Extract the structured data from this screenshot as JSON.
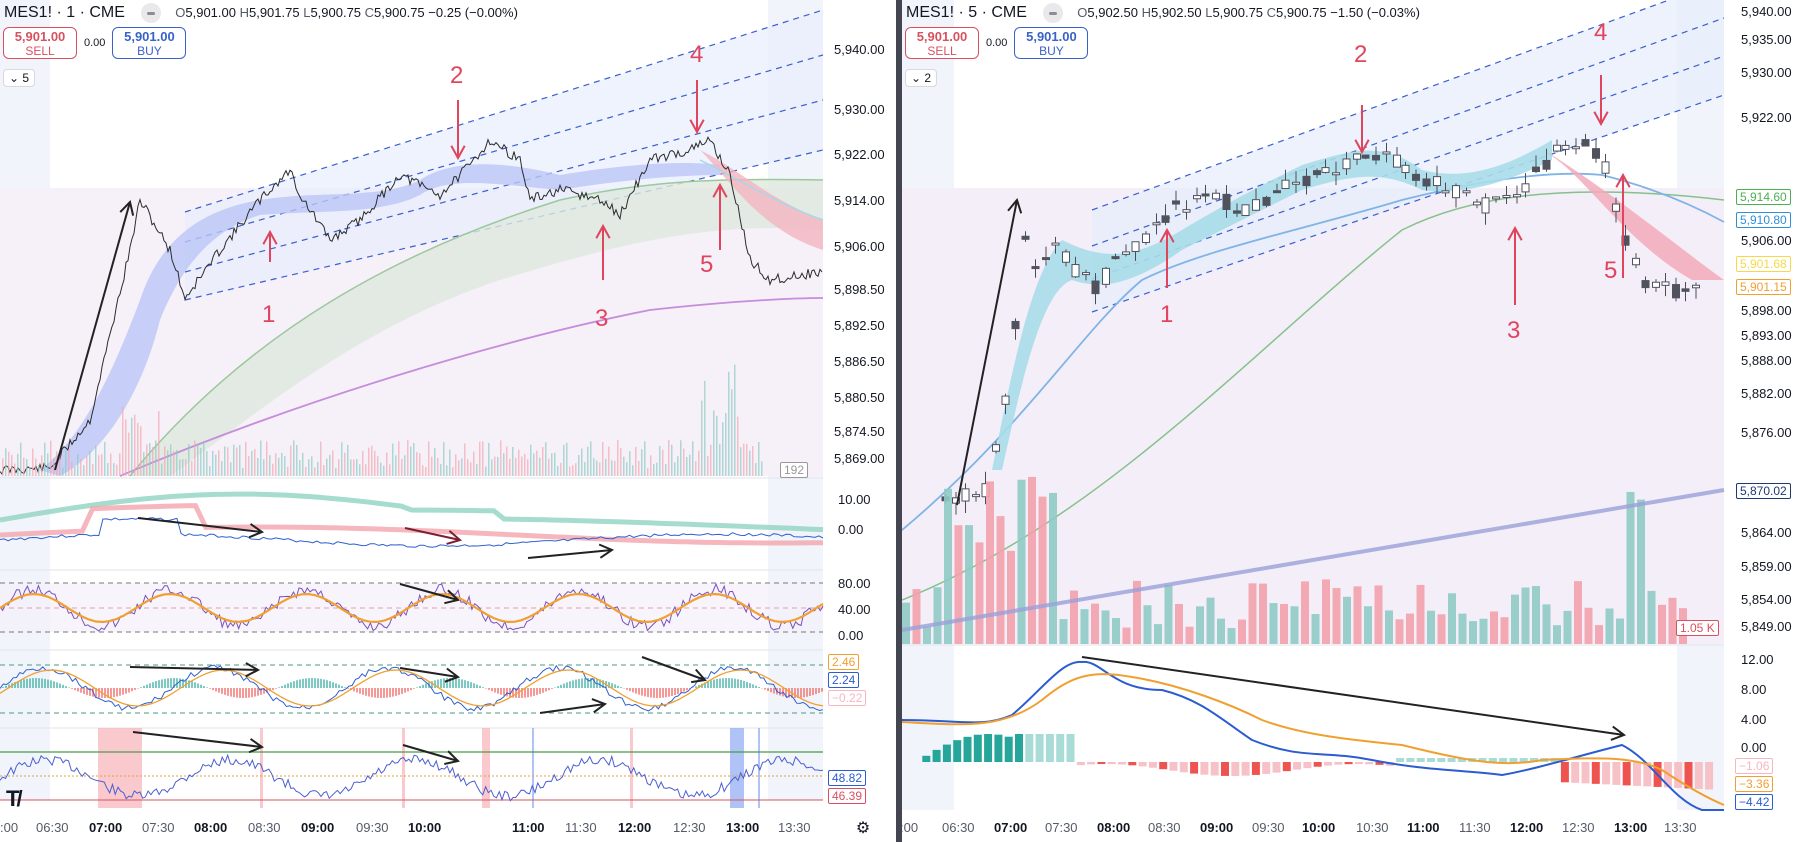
{
  "charts": [
    {
      "id": "left",
      "symbol": "MES1! · 1 · CME",
      "ohlc": {
        "o": "5,901.00",
        "h": "5,901.75",
        "l": "5,900.75",
        "c": "5,900.75",
        "change": "−0.25 (−0.00%)"
      },
      "sell": {
        "price": "5,901.00",
        "label": "SELL"
      },
      "buy": {
        "price": "5,901.00",
        "label": "BUY"
      },
      "spread": "0.00",
      "indicators_toggle": "5",
      "price_axis": [
        "5,940.00",
        "5,930.00",
        "5,922.00",
        "5,914.00",
        "5,906.00",
        "5,898.50",
        "5,892.50",
        "5,886.50",
        "5,880.50",
        "5,874.50",
        "5,869.00"
      ],
      "volume_tag": "192",
      "pane2_axis": [
        "10.00",
        "0.00"
      ],
      "pane3_axis": [
        "80.00",
        "40.00",
        "0.00"
      ],
      "pane4_tags": [
        "2.46",
        "2.24",
        "−0.22"
      ],
      "pane5_tags": [
        "48.82",
        "46.39"
      ],
      "time_axis": [
        {
          "t": ":00",
          "bold": false
        },
        {
          "t": "06:30",
          "bold": false
        },
        {
          "t": "07:00",
          "bold": true
        },
        {
          "t": "07:30",
          "bold": false
        },
        {
          "t": "08:00",
          "bold": true
        },
        {
          "t": "08:30",
          "bold": false
        },
        {
          "t": "09:00",
          "bold": true
        },
        {
          "t": "09:30",
          "bold": false
        },
        {
          "t": "10:00",
          "bold": true
        },
        {
          "t": "11:00",
          "bold": true
        },
        {
          "t": "11:30",
          "bold": false
        },
        {
          "t": "12:00",
          "bold": true
        },
        {
          "t": "12:30",
          "bold": false
        },
        {
          "t": "13:00",
          "bold": true
        },
        {
          "t": "13:30",
          "bold": false
        }
      ],
      "annotations": [
        "1",
        "2",
        "3",
        "4",
        "5"
      ]
    },
    {
      "id": "right",
      "symbol": "MES1! · 5 · CME",
      "ohlc": {
        "o": "5,902.50",
        "h": "5,902.50",
        "l": "5,900.75",
        "c": "5,900.75",
        "change": "−1.50 (−0.03%)"
      },
      "sell": {
        "price": "5,901.00",
        "label": "SELL"
      },
      "buy": {
        "price": "5,901.00",
        "label": "BUY"
      },
      "spread": "0.00",
      "indicators_toggle": "2",
      "price_axis": [
        "5,940.00",
        "5,935.00",
        "5,930.00",
        "5,922.00",
        "5,906.00",
        "5,898.00",
        "5,893.00",
        "5,888.00",
        "5,882.00",
        "5,876.00",
        "5,864.00",
        "5,859.00",
        "5,854.00",
        "5,849.00"
      ],
      "price_tags": [
        {
          "v": "5,914.60",
          "color": "#4caf50"
        },
        {
          "v": "5,910.80",
          "color": "#2f8fd8"
        },
        {
          "v": "5,901.68",
          "color": "#f5d94a"
        },
        {
          "v": "5,901.15",
          "color": "#f0a030"
        },
        {
          "v": "5,870.02",
          "color": "#1e3a70"
        }
      ],
      "volume_tag": "1.05 K",
      "macd_axis": [
        "12.00",
        "8.00",
        "4.00",
        "0.00"
      ],
      "macd_tags": [
        {
          "v": "−1.06",
          "color": "#f7b6c0"
        },
        {
          "v": "−3.36",
          "color": "#f0a030"
        },
        {
          "v": "−4.42",
          "color": "#2b5cd0"
        }
      ],
      "time_axis": [
        {
          "t": ":00",
          "bold": false
        },
        {
          "t": "06:30",
          "bold": false
        },
        {
          "t": "07:00",
          "bold": true
        },
        {
          "t": "07:30",
          "bold": false
        },
        {
          "t": "08:00",
          "bold": true
        },
        {
          "t": "08:30",
          "bold": false
        },
        {
          "t": "09:00",
          "bold": true
        },
        {
          "t": "09:30",
          "bold": false
        },
        {
          "t": "10:00",
          "bold": true
        },
        {
          "t": "10:30",
          "bold": false
        },
        {
          "t": "11:00",
          "bold": true
        },
        {
          "t": "11:30",
          "bold": false
        },
        {
          "t": "12:00",
          "bold": true
        },
        {
          "t": "12:30",
          "bold": false
        },
        {
          "t": "13:00",
          "bold": true
        },
        {
          "t": "13:30",
          "bold": false
        }
      ],
      "annotations": [
        "1",
        "2",
        "3",
        "4",
        "5"
      ]
    }
  ],
  "colors": {
    "up": "#26a69a",
    "down": "#ef5350",
    "annotation": "#e0455d",
    "channel": "#3a5fcd"
  }
}
